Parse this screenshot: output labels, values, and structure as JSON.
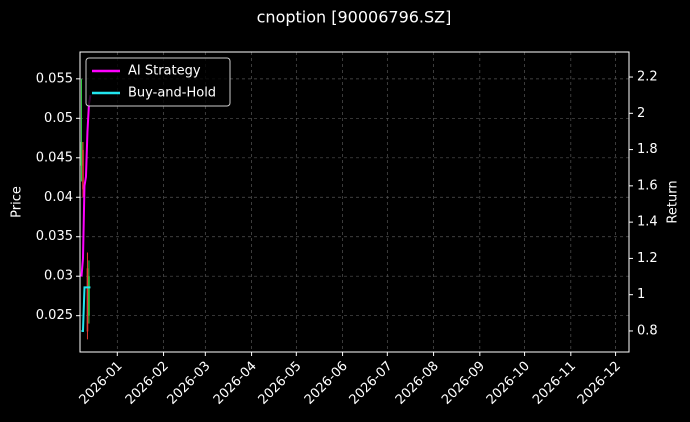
{
  "chart_data": {
    "type": "candle-return",
    "title": "cnoption [90006796.SZ]",
    "ylabel": "Price",
    "y2label": "Return",
    "xlim": [
      "2025-12-07",
      "2026-12-10"
    ],
    "xticks": [
      "2026-01",
      "2026-02",
      "2026-03",
      "2026-04",
      "2026-05",
      "2026-06",
      "2026-07",
      "2026-08",
      "2026-09",
      "2026-10",
      "2026-11",
      "2026-12"
    ],
    "ylim": [
      0.0204,
      0.0584
    ],
    "yticks": [
      0.025,
      0.03,
      0.035,
      0.04,
      0.045,
      0.05,
      0.055
    ],
    "y2lim": [
      0.684,
      2.338
    ],
    "y2ticks": [
      0.8,
      1.0,
      1.2,
      1.4,
      1.6,
      1.8,
      2.0,
      2.2
    ],
    "grid": true,
    "legend": "upper left",
    "candles": {
      "x": [
        "2025-12-08",
        "2025-12-09",
        "2025-12-12",
        "2025-12-13"
      ],
      "open": [
        0.044,
        0.046,
        0.031,
        0.025
      ],
      "high": [
        0.055,
        0.047,
        0.033,
        0.032
      ],
      "low": [
        0.042,
        0.04,
        0.022,
        0.024
      ],
      "close": [
        0.047,
        0.041,
        0.023,
        0.03
      ],
      "up_color": "#2ecc40",
      "down_color": "#e53935"
    },
    "x": [
      "2025-12-08",
      "2025-12-09",
      "2025-12-10",
      "2025-12-11",
      "2025-12-12",
      "2025-12-13",
      "2025-12-14"
    ],
    "series": [
      {
        "name": "AI Strategy",
        "color": "#ff00ff",
        "axis": "y2",
        "values": [
          1.1,
          1.2,
          1.6,
          1.65,
          1.9,
          2.05,
          2.1
        ]
      },
      {
        "name": "Buy-and-Hold",
        "color": "#22e5ef",
        "axis": "y2",
        "values": [
          0.8,
          0.8,
          1.04,
          1.04,
          1.04,
          1.04,
          1.04
        ]
      }
    ]
  }
}
